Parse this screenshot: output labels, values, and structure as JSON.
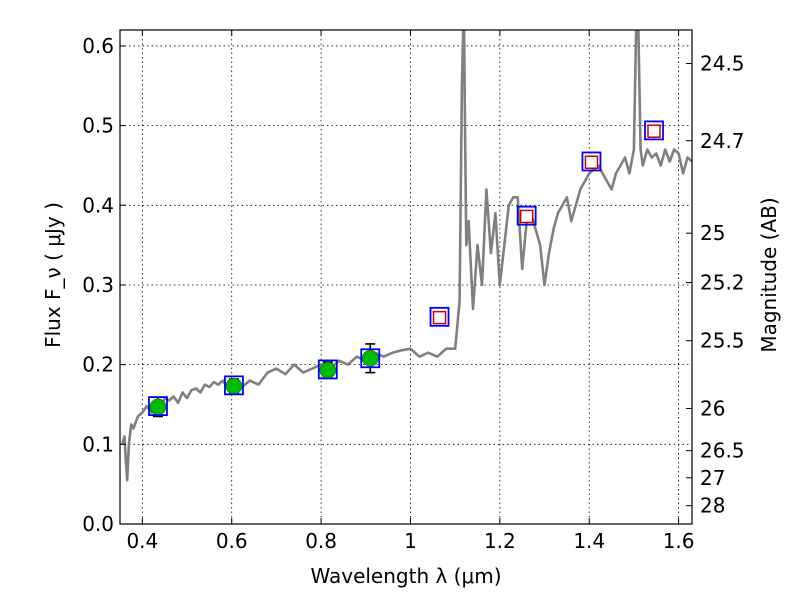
{
  "chart_data": {
    "type": "scatter",
    "xlabel": "Wavelength  λ (μm)",
    "ylabel": "Flux  F_ν  ( μJy )",
    "ylabel_right": "Magnitude (AB)",
    "xlim": [
      0.35,
      1.63
    ],
    "ylim": [
      0.0,
      0.62
    ],
    "grid": true,
    "x_ticks": [
      0.4,
      0.6,
      0.8,
      1.0,
      1.2,
      1.4,
      1.6
    ],
    "x_tick_labels": [
      "0.4",
      "0.6",
      "0.8",
      "1",
      "1.2",
      "1.4",
      "1.6"
    ],
    "y_ticks": [
      0.0,
      0.1,
      0.2,
      0.3,
      0.4,
      0.5,
      0.6
    ],
    "y_tick_labels": [
      "0.0",
      "0.1",
      "0.2",
      "0.3",
      "0.4",
      "0.5",
      "0.6"
    ],
    "right_axis_ticks": [
      {
        "label": "24.5",
        "flux": 0.578
      },
      {
        "label": "24.7",
        "flux": 0.481
      },
      {
        "label": "25",
        "flux": 0.365
      },
      {
        "label": "25.2",
        "flux": 0.303
      },
      {
        "label": "25.5",
        "flux": 0.23
      },
      {
        "label": "26",
        "flux": 0.145
      },
      {
        "label": "26.5",
        "flux": 0.092
      },
      {
        "label": "27",
        "flux": 0.058
      },
      {
        "label": "28",
        "flux": 0.023
      }
    ],
    "series": [
      {
        "kind": "spectrum",
        "color": "#808080",
        "x": [
          0.355,
          0.36,
          0.363,
          0.366,
          0.37,
          0.375,
          0.38,
          0.39,
          0.4,
          0.41,
          0.42,
          0.43,
          0.44,
          0.45,
          0.46,
          0.47,
          0.48,
          0.49,
          0.5,
          0.51,
          0.52,
          0.53,
          0.54,
          0.55,
          0.56,
          0.57,
          0.58,
          0.59,
          0.6,
          0.62,
          0.64,
          0.66,
          0.68,
          0.7,
          0.72,
          0.74,
          0.76,
          0.78,
          0.8,
          0.82,
          0.84,
          0.86,
          0.88,
          0.9,
          0.92,
          0.94,
          0.96,
          0.98,
          1.0,
          1.02,
          1.04,
          1.06,
          1.08,
          1.1,
          1.11,
          1.115,
          1.118,
          1.12,
          1.122,
          1.125,
          1.13,
          1.14,
          1.15,
          1.16,
          1.17,
          1.18,
          1.19,
          1.2,
          1.21,
          1.22,
          1.23,
          1.24,
          1.25,
          1.26,
          1.27,
          1.28,
          1.29,
          1.3,
          1.31,
          1.32,
          1.33,
          1.34,
          1.35,
          1.36,
          1.37,
          1.38,
          1.39,
          1.4,
          1.42,
          1.44,
          1.45,
          1.46,
          1.47,
          1.48,
          1.49,
          1.5,
          1.505,
          1.51,
          1.515,
          1.52,
          1.53,
          1.54,
          1.55,
          1.56,
          1.57,
          1.58,
          1.59,
          1.6,
          1.61,
          1.62,
          1.63
        ],
        "y": [
          0.1,
          0.11,
          0.08,
          0.055,
          0.1,
          0.125,
          0.12,
          0.135,
          0.14,
          0.148,
          0.14,
          0.15,
          0.145,
          0.158,
          0.155,
          0.16,
          0.152,
          0.165,
          0.158,
          0.168,
          0.17,
          0.165,
          0.175,
          0.172,
          0.178,
          0.175,
          0.18,
          0.172,
          0.178,
          0.17,
          0.18,
          0.175,
          0.19,
          0.195,
          0.188,
          0.2,
          0.19,
          0.195,
          0.2,
          0.195,
          0.205,
          0.2,
          0.21,
          0.205,
          0.215,
          0.21,
          0.215,
          0.218,
          0.22,
          0.21,
          0.215,
          0.21,
          0.22,
          0.22,
          0.28,
          0.55,
          0.62,
          0.62,
          0.5,
          0.35,
          0.38,
          0.27,
          0.35,
          0.3,
          0.42,
          0.34,
          0.39,
          0.3,
          0.35,
          0.4,
          0.41,
          0.41,
          0.32,
          0.38,
          0.39,
          0.37,
          0.35,
          0.3,
          0.34,
          0.37,
          0.39,
          0.4,
          0.41,
          0.38,
          0.4,
          0.42,
          0.43,
          0.44,
          0.45,
          0.43,
          0.42,
          0.44,
          0.45,
          0.46,
          0.44,
          0.47,
          0.62,
          0.62,
          0.47,
          0.45,
          0.47,
          0.46,
          0.465,
          0.45,
          0.47,
          0.455,
          0.47,
          0.465,
          0.44,
          0.46,
          0.455
        ]
      },
      {
        "kind": "observed",
        "color": "#00bb00",
        "x": [
          0.435,
          0.605,
          0.815,
          0.91
        ],
        "y": [
          0.147,
          0.173,
          0.193,
          0.208
        ],
        "yerr": [
          0.012,
          0.009,
          0.01,
          0.018
        ]
      },
      {
        "kind": "model_box",
        "color": "#0000ff",
        "x": [
          0.435,
          0.605,
          0.815,
          0.91,
          1.065,
          1.26,
          1.405,
          1.545
        ],
        "y": [
          0.148,
          0.174,
          0.194,
          0.208,
          0.26,
          0.387,
          0.455,
          0.494
        ]
      },
      {
        "kind": "upper_bound",
        "color": "#cc0000",
        "x": [
          1.065,
          1.26,
          1.405,
          1.545
        ],
        "y": [
          0.259,
          0.386,
          0.454,
          0.493
        ]
      }
    ]
  }
}
